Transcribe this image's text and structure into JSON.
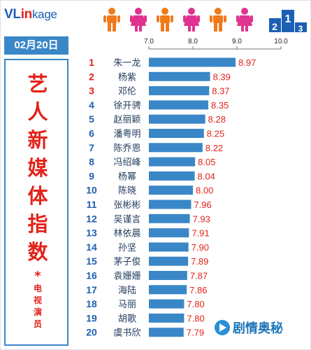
{
  "header": {
    "logo_text": "VLinkage",
    "logo_parts": [
      "VL",
      "in",
      "kage"
    ],
    "date": "02月20日",
    "podium_numbers": [
      "2",
      "1",
      "3"
    ]
  },
  "sidebar": {
    "title_chars": [
      "艺",
      "人",
      "新",
      "媒",
      "体",
      "指",
      "数"
    ],
    "star": "*",
    "subtitle_chars": [
      "电",
      "视",
      "演",
      "员"
    ]
  },
  "watermark": {
    "text": "剧情奥秘"
  },
  "colors": {
    "bar": "#3a87c8",
    "value_text": "#e2231a",
    "rank_top3": "#e2231a",
    "rank_rest": "#1d5fb4",
    "female_icon": "#e0338f",
    "male_icon": "#f07a1a"
  },
  "chart_data": {
    "type": "bar",
    "orientation": "horizontal",
    "xlim": [
      7.0,
      10.0
    ],
    "ticks": [
      "7.0",
      "8.0",
      "9.0",
      "10.0"
    ],
    "grid": false,
    "ranks": [
      "1",
      "2",
      "3",
      "4",
      "5",
      "6",
      "7",
      "8",
      "9",
      "10",
      "11",
      "12",
      "13",
      "14",
      "15",
      "16",
      "17",
      "18",
      "19",
      "20"
    ],
    "categories": [
      "朱一龙",
      "杨紫",
      "邓伦",
      "徐开骋",
      "赵丽颖",
      "潘粤明",
      "陈乔恩",
      "冯绍峰",
      "杨幂",
      "陈晓",
      "张彬彬",
      "吴谨言",
      "林依晨",
      "孙坚",
      "茅子俊",
      "袁姗姗",
      "海陆",
      "马丽",
      "胡歌",
      "虞书欣"
    ],
    "values": [
      8.97,
      8.39,
      8.37,
      8.35,
      8.28,
      8.25,
      8.22,
      8.05,
      8.04,
      8.0,
      7.96,
      7.93,
      7.91,
      7.9,
      7.89,
      7.87,
      7.86,
      7.8,
      7.8,
      7.79
    ],
    "value_labels": [
      "8.97",
      "8.39",
      "8.37",
      "8.35",
      "8.28",
      "8.25",
      "8.22",
      "8.05",
      "8.04",
      "8.00",
      "7.96",
      "7.93",
      "7.91",
      "7.90",
      "7.89",
      "7.87",
      "7.86",
      "7.80",
      "7.80",
      "7.79"
    ]
  }
}
